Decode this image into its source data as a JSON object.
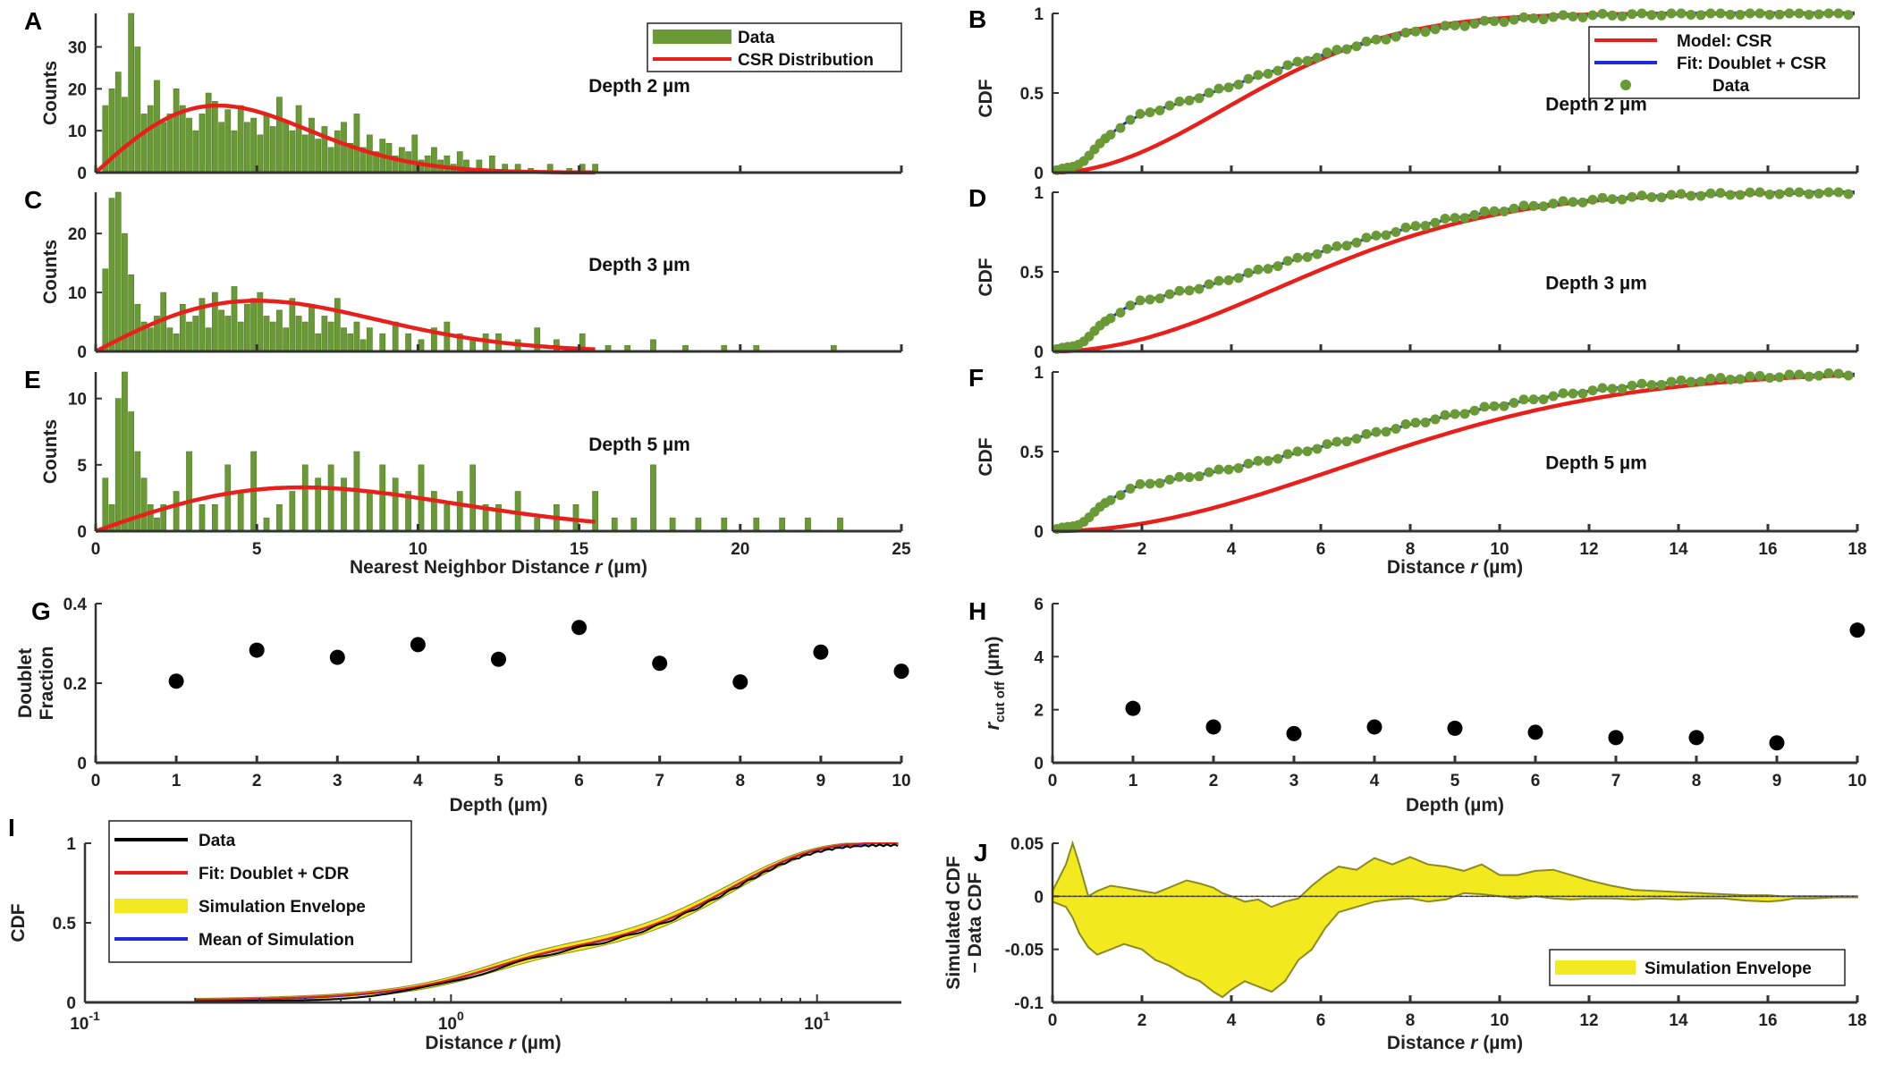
{
  "figure": {
    "colors": {
      "bar": "#6a9a35",
      "bar_edge": "#4e7a22",
      "csr": "#e8201c",
      "fit": "#1f2bd6",
      "dot": "#6a9a35",
      "black": "#000000",
      "envelope": "#f2ea1e",
      "envelope_edge": "#8a8a20"
    }
  },
  "chart_data": [
    {
      "id": "A",
      "type": "bar",
      "panel_label": "A",
      "annotation": "Depth 2 µm",
      "ylabel": "Counts",
      "xlabel": "",
      "xlim": [
        0,
        25
      ],
      "ylim": [
        0,
        38
      ],
      "xticks": [
        0,
        5,
        10,
        15,
        20,
        25
      ],
      "yticks": [
        0,
        10,
        20,
        30
      ],
      "bin_width": 0.2,
      "x": [
        0.3,
        0.5,
        0.7,
        0.9,
        1.1,
        1.3,
        1.5,
        1.7,
        1.9,
        2.1,
        2.3,
        2.5,
        2.7,
        2.9,
        3.1,
        3.3,
        3.5,
        3.7,
        3.9,
        4.1,
        4.3,
        4.5,
        4.7,
        4.9,
        5.1,
        5.3,
        5.5,
        5.7,
        5.9,
        6.1,
        6.3,
        6.5,
        6.7,
        6.9,
        7.1,
        7.3,
        7.5,
        7.7,
        7.9,
        8.1,
        8.3,
        8.5,
        8.7,
        8.9,
        9.1,
        9.3,
        9.5,
        9.7,
        9.9,
        10.1,
        10.3,
        10.5,
        10.7,
        10.9,
        11.1,
        11.3,
        11.5,
        11.9,
        12.3,
        12.7,
        13.1,
        13.5,
        14.1,
        14.7,
        15.1,
        15.5
      ],
      "values": [
        16,
        20,
        24,
        18,
        38,
        30,
        14,
        16,
        22,
        12,
        14,
        20,
        16,
        13,
        10,
        14,
        19,
        17,
        12,
        15,
        10,
        16,
        12,
        13,
        9,
        14,
        11,
        18,
        12,
        10,
        16,
        9,
        13,
        8,
        11,
        6,
        10,
        12,
        7,
        14,
        6,
        9,
        5,
        8,
        7,
        4,
        6,
        5,
        9,
        3,
        4,
        6,
        3,
        4,
        2,
        5,
        3,
        3,
        4,
        2,
        2,
        1,
        2,
        1,
        2,
        2
      ],
      "curve_label": "CSR Distribution",
      "curve": {
        "sigma": 3.8,
        "peak": 16
      },
      "legend": [
        {
          "label": "Data",
          "kind": "bar"
        },
        {
          "label": "CSR Distribution",
          "kind": "line"
        }
      ]
    },
    {
      "id": "C",
      "type": "bar",
      "panel_label": "C",
      "annotation": "Depth 3 µm",
      "ylabel": "Counts",
      "xlabel": "",
      "xlim": [
        0,
        25
      ],
      "ylim": [
        0,
        27
      ],
      "xticks": [
        0,
        5,
        10,
        15,
        20,
        25
      ],
      "yticks": [
        0,
        10,
        20
      ],
      "bin_width": 0.2,
      "x": [
        0.3,
        0.5,
        0.7,
        0.9,
        1.1,
        1.3,
        1.5,
        1.7,
        1.9,
        2.1,
        2.3,
        2.5,
        2.7,
        2.9,
        3.1,
        3.3,
        3.5,
        3.7,
        3.9,
        4.1,
        4.3,
        4.5,
        4.7,
        4.9,
        5.1,
        5.3,
        5.5,
        5.7,
        5.9,
        6.1,
        6.3,
        6.5,
        6.7,
        6.9,
        7.1,
        7.3,
        7.5,
        7.7,
        7.9,
        8.1,
        8.3,
        8.5,
        8.9,
        9.3,
        9.7,
        10.1,
        10.5,
        10.9,
        11.3,
        11.7,
        12.1,
        12.5,
        13.1,
        13.7,
        14.3,
        15.1,
        15.9,
        16.5,
        17.3,
        18.3,
        19.5,
        20.5,
        22.9
      ],
      "values": [
        14,
        26,
        27,
        20,
        13,
        8,
        5,
        4,
        6,
        10,
        4,
        3,
        8,
        5,
        6,
        9,
        4,
        10,
        7,
        6,
        11,
        5,
        8,
        9,
        10,
        6,
        5,
        7,
        4,
        9,
        6,
        5,
        8,
        3,
        6,
        5,
        9,
        4,
        3,
        5,
        2,
        4,
        3,
        5,
        3,
        2,
        4,
        5,
        3,
        2,
        3,
        3,
        2,
        4,
        2,
        3,
        1,
        1,
        2,
        1,
        1,
        1,
        1
      ],
      "curve": {
        "sigma": 5.0,
        "peak": 8.6
      },
      "legend": []
    },
    {
      "id": "E",
      "type": "bar",
      "panel_label": "E",
      "annotation": "Depth 5 µm",
      "ylabel": "Counts",
      "xlabel": "Nearest Neighbor Distance r (µm)",
      "xlim": [
        0,
        25
      ],
      "ylim": [
        0,
        12
      ],
      "xticks": [
        0,
        5,
        10,
        15,
        20,
        25
      ],
      "yticks": [
        0,
        5,
        10
      ],
      "bin_width": 0.2,
      "x": [
        0.3,
        0.5,
        0.7,
        0.9,
        1.1,
        1.3,
        1.5,
        1.7,
        1.9,
        2.1,
        2.5,
        2.9,
        3.3,
        3.7,
        4.1,
        4.5,
        4.9,
        5.3,
        5.7,
        6.1,
        6.5,
        6.9,
        7.3,
        7.7,
        8.1,
        8.5,
        8.9,
        9.3,
        9.7,
        10.1,
        10.5,
        10.9,
        11.3,
        11.7,
        12.1,
        12.5,
        13.1,
        13.7,
        14.3,
        14.9,
        15.5,
        16.1,
        16.7,
        17.3,
        17.9,
        18.7,
        19.5,
        20.5,
        21.3,
        22.1,
        23.1
      ],
      "values": [
        4,
        2,
        10,
        12,
        9,
        6,
        4,
        2,
        1,
        2,
        3,
        6,
        2,
        2,
        5,
        3,
        6,
        1,
        2,
        3,
        5,
        4,
        5,
        4,
        6,
        3,
        5,
        4,
        3,
        5,
        3,
        2,
        3,
        5,
        2,
        2,
        3,
        1,
        2,
        2,
        3,
        1,
        1,
        5,
        1,
        1,
        1,
        1,
        1,
        1,
        1
      ],
      "curve": {
        "sigma": 6.4,
        "peak": 3.3
      },
      "legend": []
    },
    {
      "id": "B",
      "type": "line",
      "panel_label": "B",
      "annotation": "Depth 2 µm",
      "ylabel": "CDF",
      "xlabel": "",
      "xlim": [
        0,
        18
      ],
      "ylim": [
        0,
        1
      ],
      "yticks": [
        0,
        0.5,
        1
      ],
      "xticks": [
        2,
        4,
        6,
        8,
        10,
        12,
        14,
        16,
        18
      ],
      "show_xtick_labels": false,
      "csr_sigma": 3.8,
      "doublet": {
        "frac": 0.3,
        "s": 0.5,
        "sigma": 4.3
      },
      "legend": [
        {
          "label": "Model: CSR",
          "kind": "line",
          "color": "csr"
        },
        {
          "label": "Fit: Doublet + CSR",
          "kind": "line",
          "color": "fit"
        },
        {
          "label": "Data",
          "kind": "dot",
          "color": "dot"
        }
      ]
    },
    {
      "id": "D",
      "type": "line",
      "panel_label": "D",
      "annotation": "Depth 3 µm",
      "ylabel": "CDF",
      "xlabel": "",
      "xlim": [
        0,
        18
      ],
      "ylim": [
        0,
        1
      ],
      "yticks": [
        0,
        0.5,
        1
      ],
      "xticks": [
        2,
        4,
        6,
        8,
        10,
        12,
        14,
        16,
        18
      ],
      "show_xtick_labels": false,
      "csr_sigma": 5.0,
      "doublet": {
        "frac": 0.27,
        "s": 0.5,
        "sigma": 5.2
      },
      "legend": []
    },
    {
      "id": "F",
      "type": "line",
      "panel_label": "F",
      "annotation": "Depth 5 µm",
      "ylabel": "CDF",
      "xlabel": "Distance r (µm)",
      "xlim": [
        0,
        18
      ],
      "ylim": [
        0,
        1
      ],
      "yticks": [
        0,
        0.5,
        1
      ],
      "xticks": [
        2,
        4,
        6,
        8,
        10,
        12,
        14,
        16,
        18
      ],
      "xtick_labels": [
        "2",
        "4",
        "6",
        "8",
        "10",
        "12",
        "14",
        "16",
        "18"
      ],
      "show_xtick_labels": true,
      "csr_sigma": 6.4,
      "doublet": {
        "frac": 0.26,
        "s": 0.5,
        "sigma": 6.3
      },
      "legend": []
    },
    {
      "id": "G",
      "type": "scatter",
      "panel_label": "G",
      "ylabel_lines": [
        "Doublet",
        "Fraction"
      ],
      "xlabel": "Depth (µm)",
      "xlim": [
        0,
        10
      ],
      "ylim": [
        0,
        0.4
      ],
      "xticks": [
        0,
        1,
        2,
        3,
        4,
        5,
        6,
        7,
        8,
        9,
        10
      ],
      "yticks": [
        0,
        0.2,
        0.4
      ],
      "x": [
        1,
        2,
        3,
        4,
        5,
        6,
        7,
        8,
        9,
        10
      ],
      "values": [
        0.205,
        0.283,
        0.265,
        0.297,
        0.26,
        0.34,
        0.25,
        0.203,
        0.278,
        0.23
      ]
    },
    {
      "id": "H",
      "type": "scatter",
      "panel_label": "H",
      "ylabel_main": "r",
      "ylabel_sub": "cut off",
      "ylabel_unit": " (µm)",
      "xlabel": "Depth (µm)",
      "xlim": [
        0,
        10
      ],
      "ylim": [
        0,
        6
      ],
      "xticks": [
        0,
        1,
        2,
        3,
        4,
        5,
        6,
        7,
        8,
        9,
        10
      ],
      "yticks": [
        0,
        2,
        4,
        6
      ],
      "x": [
        1,
        2,
        3,
        4,
        5,
        6,
        7,
        8,
        9,
        10
      ],
      "values": [
        2.05,
        1.35,
        1.1,
        1.35,
        1.3,
        1.15,
        0.95,
        0.95,
        0.75,
        5.0
      ]
    },
    {
      "id": "I",
      "type": "area",
      "panel_label": "I",
      "ylabel": "CDF",
      "xlabel": "Distance r (µm)",
      "xscale": "log",
      "xlim": [
        0.1,
        17
      ],
      "ylim": [
        0,
        1
      ],
      "yticks": [
        0,
        0.5,
        1
      ],
      "xtick_base": "10",
      "xtick_exponents": [
        "-1",
        "0",
        "1"
      ],
      "doublet": {
        "frac": 0.26,
        "s": 0.5,
        "sigma": 4.2
      },
      "legend": [
        {
          "label": "Data",
          "kind": "line",
          "color": "black"
        },
        {
          "label": "Fit: Doublet + CDR",
          "kind": "line",
          "color": "csr"
        },
        {
          "label": "Simulation Envelope",
          "kind": "band",
          "color": "envelope"
        },
        {
          "label": "Mean of Simulation",
          "kind": "line",
          "color": "fit"
        }
      ]
    },
    {
      "id": "J",
      "type": "area",
      "panel_label": "J",
      "ylabel_lines": [
        "Simulated CDF",
        "− Data CDF"
      ],
      "xlabel": "Distance r (µm)",
      "xlim": [
        0,
        18
      ],
      "ylim": [
        -0.1,
        0.05
      ],
      "xticks": [
        0,
        2,
        4,
        6,
        8,
        10,
        12,
        14,
        16,
        18
      ],
      "yticks": [
        -0.1,
        -0.05,
        0,
        0.05
      ],
      "ytick_labels": [
        "-0.1",
        "-0.05",
        "0",
        "0.05"
      ],
      "x": [
        0,
        0.3,
        0.45,
        0.6,
        0.8,
        1.0,
        1.3,
        1.6,
        2.0,
        2.3,
        2.6,
        3.0,
        3.3,
        3.6,
        3.8,
        4.0,
        4.3,
        4.6,
        4.9,
        5.2,
        5.5,
        5.8,
        6.1,
        6.4,
        6.8,
        7.2,
        7.6,
        8.0,
        8.4,
        8.8,
        9.2,
        9.6,
        10.0,
        10.4,
        10.8,
        11.2,
        11.6,
        12.0,
        12.5,
        13.0,
        13.5,
        14.0,
        14.5,
        15.0,
        15.5,
        16.0,
        16.3,
        16.6,
        17.0,
        17.5,
        18.0
      ],
      "upper": [
        0.005,
        0.03,
        0.05,
        0.03,
        0.0,
        0.005,
        0.01,
        0.008,
        0.005,
        0.003,
        0.008,
        0.015,
        0.012,
        0.008,
        0.003,
        0.0,
        -0.005,
        -0.003,
        -0.01,
        -0.005,
        -0.002,
        0.01,
        0.02,
        0.028,
        0.025,
        0.036,
        0.03,
        0.037,
        0.03,
        0.028,
        0.024,
        0.03,
        0.02,
        0.02,
        0.024,
        0.025,
        0.02,
        0.015,
        0.01,
        0.006,
        0.005,
        0.004,
        0.003,
        0.002,
        0.001,
        0.001,
        0.0,
        0.0,
        0.0,
        0.0,
        0.0
      ],
      "lower": [
        -0.005,
        -0.01,
        -0.02,
        -0.035,
        -0.048,
        -0.055,
        -0.05,
        -0.045,
        -0.05,
        -0.06,
        -0.065,
        -0.075,
        -0.08,
        -0.09,
        -0.095,
        -0.088,
        -0.08,
        -0.085,
        -0.09,
        -0.08,
        -0.06,
        -0.05,
        -0.03,
        -0.015,
        -0.01,
        -0.005,
        -0.003,
        -0.002,
        -0.005,
        -0.003,
        0.003,
        0.002,
        0.0,
        -0.002,
        0.0,
        -0.002,
        -0.003,
        -0.002,
        -0.002,
        -0.003,
        -0.002,
        -0.003,
        -0.002,
        -0.002,
        -0.004,
        -0.005,
        -0.004,
        -0.002,
        -0.002,
        -0.001,
        -0.001
      ],
      "legend": [
        {
          "label": "Simulation Envelope",
          "kind": "band",
          "color": "envelope"
        }
      ]
    }
  ]
}
